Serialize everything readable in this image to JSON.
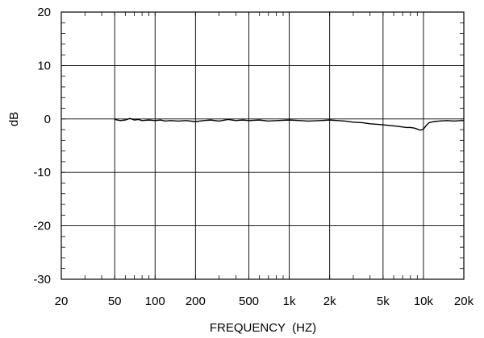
{
  "chart_data": {
    "type": "line",
    "title": "",
    "xlabel": "FREQUENCY  (HZ)",
    "ylabel": "dB",
    "xscale": "log",
    "xlim": [
      20,
      20000
    ],
    "ylim": [
      -30,
      20
    ],
    "grid": true,
    "legend": "none",
    "x_ticks": [
      {
        "value": 20,
        "label": "20"
      },
      {
        "value": 50,
        "label": "50"
      },
      {
        "value": 100,
        "label": "100"
      },
      {
        "value": 200,
        "label": "200"
      },
      {
        "value": 500,
        "label": "500"
      },
      {
        "value": 1000,
        "label": "1k"
      },
      {
        "value": 2000,
        "label": "2k"
      },
      {
        "value": 5000,
        "label": "5k"
      },
      {
        "value": 10000,
        "label": "10k"
      },
      {
        "value": 20000,
        "label": "20k"
      }
    ],
    "y_ticks": [
      {
        "value": 20,
        "label": "20"
      },
      {
        "value": 10,
        "label": "10"
      },
      {
        "value": 0,
        "label": "0"
      },
      {
        "value": -10,
        "label": "-10"
      },
      {
        "value": -20,
        "label": "-20"
      },
      {
        "value": -30,
        "label": "-30"
      }
    ],
    "series": [
      {
        "color": "#000000",
        "x": [
          50,
          55,
          60,
          65,
          70,
          75,
          80,
          90,
          100,
          110,
          120,
          130,
          150,
          170,
          200,
          230,
          260,
          300,
          350,
          400,
          450,
          500,
          600,
          700,
          800,
          1000,
          1200,
          1400,
          1700,
          2000,
          2300,
          2600,
          3000,
          3500,
          4000,
          4500,
          5000,
          5500,
          6000,
          6500,
          7000,
          7500,
          8000,
          8500,
          9000,
          9500,
          10000,
          10500,
          11000,
          12000,
          13000,
          15000,
          17000,
          19000,
          20000
        ],
        "y": [
          -0.1,
          -0.3,
          -0.2,
          0.1,
          -0.2,
          -0.1,
          -0.3,
          -0.2,
          -0.3,
          -0.2,
          -0.4,
          -0.3,
          -0.4,
          -0.3,
          -0.5,
          -0.3,
          -0.2,
          -0.4,
          -0.1,
          -0.3,
          -0.2,
          -0.3,
          -0.2,
          -0.4,
          -0.3,
          -0.2,
          -0.3,
          -0.4,
          -0.3,
          -0.2,
          -0.3,
          -0.4,
          -0.6,
          -0.7,
          -0.9,
          -1.0,
          -1.1,
          -1.2,
          -1.3,
          -1.4,
          -1.5,
          -1.6,
          -1.6,
          -1.7,
          -1.9,
          -2.1,
          -1.9,
          -1.2,
          -0.7,
          -0.5,
          -0.4,
          -0.3,
          -0.4,
          -0.3,
          -0.3
        ]
      }
    ]
  }
}
